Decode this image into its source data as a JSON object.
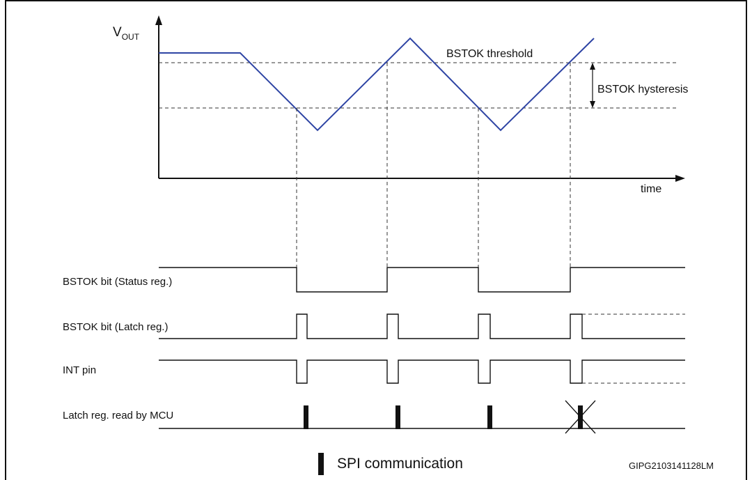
{
  "diagram": {
    "y_axis": {
      "symbol": "V",
      "subscript": "OUT"
    },
    "x_axis_label": "time",
    "threshold_label": "BSTOK threshold",
    "hysteresis_label": "BSTOK hysteresis",
    "signals": [
      {
        "label": "BSTOK bit (Status reg.)"
      },
      {
        "label": "BSTOK bit (Latch reg.)"
      },
      {
        "label": "INT pin"
      },
      {
        "label": "Latch reg. read by MCU"
      }
    ],
    "legend_label": "SPI communication",
    "figure_code": "GIPG2103141128LM",
    "colors": {
      "vout_line": "#2E44A4",
      "ink": "#111111"
    }
  }
}
